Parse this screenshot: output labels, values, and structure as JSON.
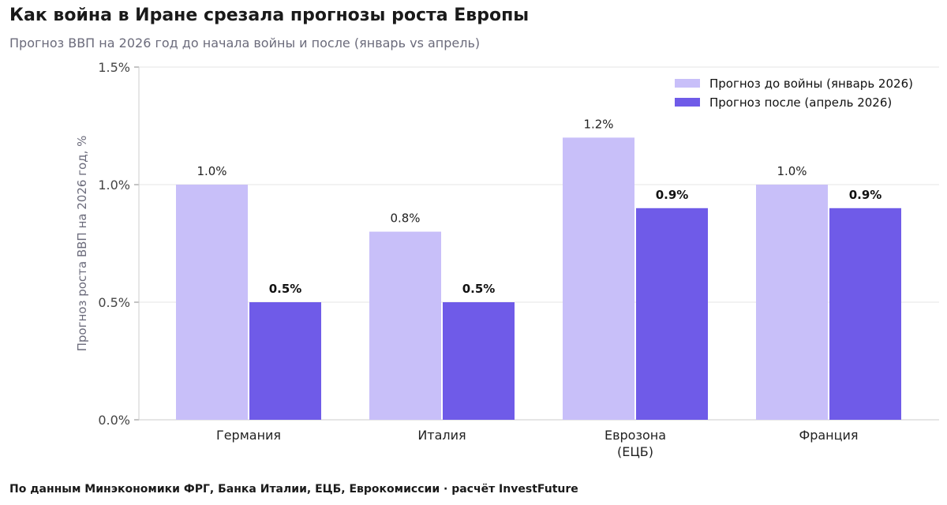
{
  "title": "Как война в Иране срезала прогнозы роста Европы",
  "subtitle": "Прогноз ВВП на 2026 год до начала войны и после (январь vs апрель)",
  "source": "По данным Минэкономики ФРГ, Банка Италии, ЕЦБ, Еврокомиссии · расчёт InvestFuture",
  "colors": {
    "before": "#c8bff9",
    "after": "#6f5be8",
    "grid": "#e6e6e6",
    "axis": "#cccccc"
  },
  "chart_data": {
    "type": "bar",
    "categories": [
      [
        "Германия"
      ],
      [
        "Италия"
      ],
      [
        "Еврозона",
        "(ЕЦБ)"
      ],
      [
        "Франция"
      ]
    ],
    "series": [
      {
        "name": "Прогноз до войны (январь 2026)",
        "values": [
          1.0,
          0.8,
          1.2,
          1.0
        ],
        "labels": [
          "1.0%",
          "0.8%",
          "1.2%",
          "1.0%"
        ]
      },
      {
        "name": "Прогноз после (апрель 2026)",
        "values": [
          0.5,
          0.5,
          0.9,
          0.9
        ],
        "labels": [
          "0.5%",
          "0.5%",
          "0.9%",
          "0.9%"
        ]
      }
    ],
    "ylabel": "Прогноз роста ВВП на 2026 год, %",
    "ylim": [
      0,
      1.5
    ],
    "yticks": [
      0,
      0.5,
      1.0,
      1.5
    ],
    "ytick_labels": [
      "0.0%",
      "0.5%",
      "1.0%",
      "1.5%"
    ],
    "grid": true,
    "legend_position": "top-right"
  }
}
